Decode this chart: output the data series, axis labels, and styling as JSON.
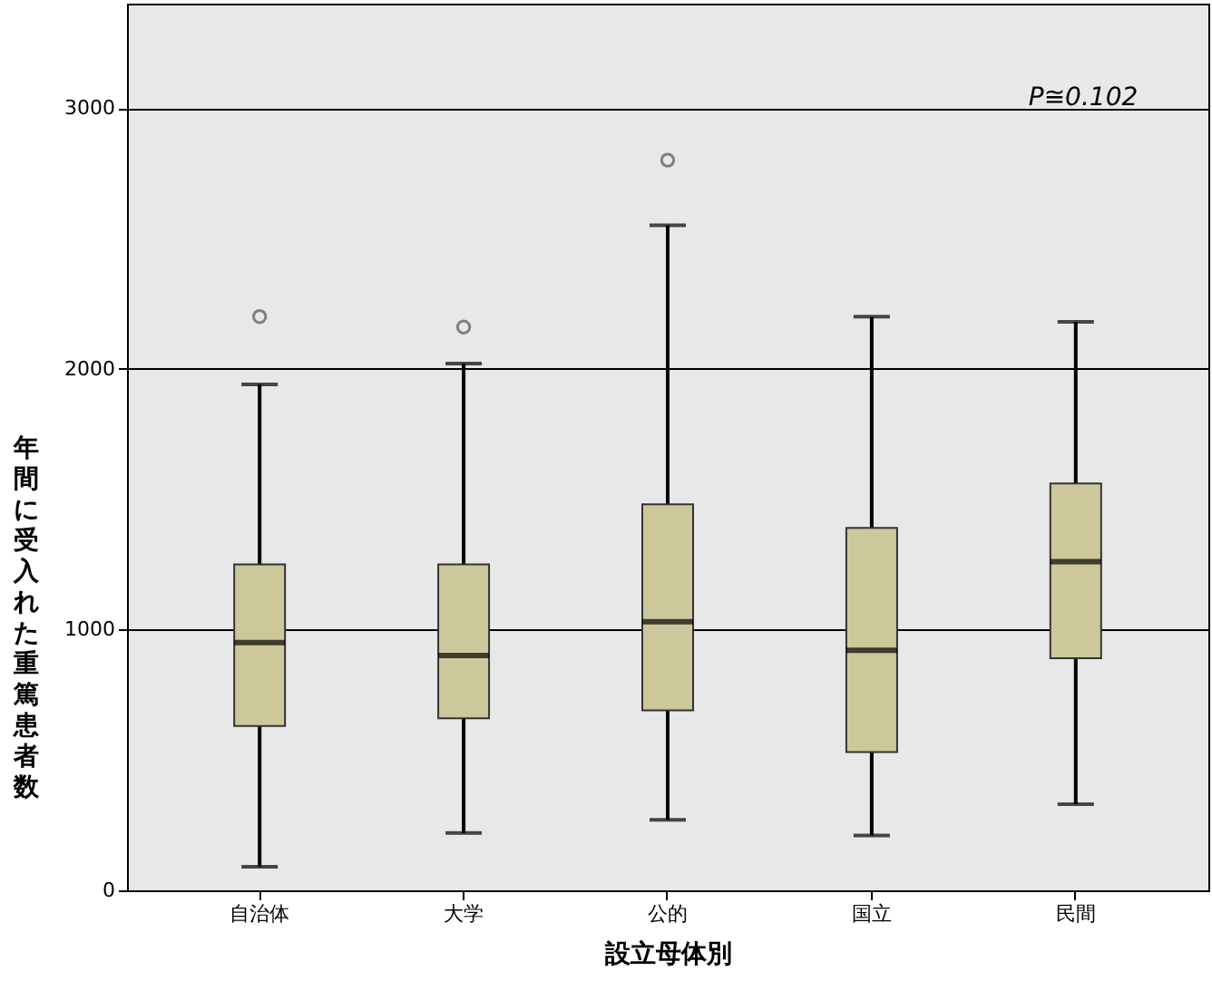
{
  "chart_data": {
    "type": "box",
    "xlabel": "設立母体別",
    "ylabel": "年間に受入れた重篤患者数",
    "categories": [
      "自治体",
      "大学",
      "公的",
      "国立",
      "民間"
    ],
    "color": "#cdc89b",
    "boxes": [
      {
        "low": 90,
        "q1": 630,
        "median": 950,
        "q3": 1250,
        "high": 1940,
        "outliers": [
          2200
        ]
      },
      {
        "low": 220,
        "q1": 660,
        "median": 900,
        "q3": 1250,
        "high": 2020,
        "outliers": [
          2160
        ]
      },
      {
        "low": 270,
        "q1": 690,
        "median": 1030,
        "q3": 1480,
        "high": 2550,
        "outliers": [
          2800
        ]
      },
      {
        "low": 210,
        "q1": 530,
        "median": 920,
        "q3": 1390,
        "high": 2200
      },
      {
        "low": 330,
        "q1": 890,
        "median": 1260,
        "q3": 1560,
        "high": 2180
      }
    ],
    "ylim": [
      0,
      3400
    ],
    "yticks": [
      0,
      1000,
      2000,
      3000
    ],
    "grid": "y",
    "annotations": [
      "P≅0.102"
    ]
  }
}
